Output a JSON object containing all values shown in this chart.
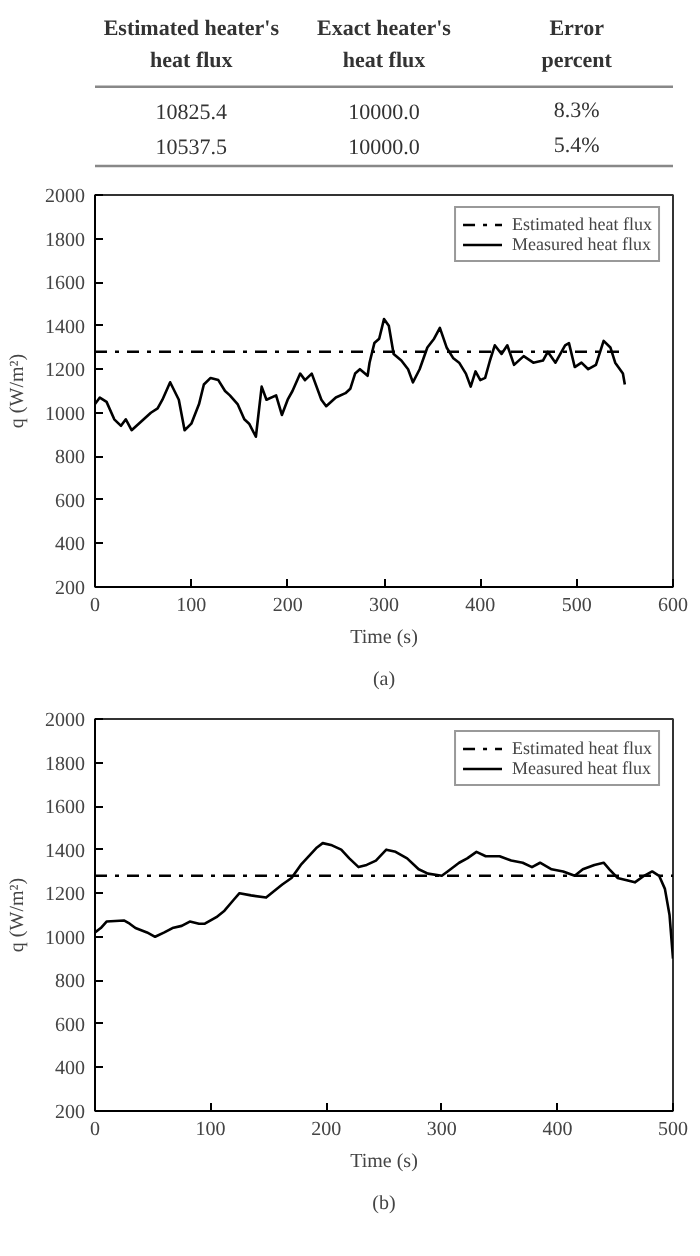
{
  "chart_data": [
    {
      "type": "other",
      "annotations": [
        "Estimated heater's\nheat flux",
        "Exact heater's\nheat flux",
        "Error\npercent",
        "10825.4",
        "10000.0",
        "8.3%",
        "10537.5",
        "10000.0",
        "5.4%"
      ]
    },
    {
      "type": "line",
      "xlabel": "Time (s)",
      "ylabel": "q (W/m²)",
      "annotations": [
        "(a)"
      ],
      "xlim": [
        0,
        600
      ],
      "ylim": [
        200,
        2000
      ],
      "xticks": [
        0,
        100,
        200,
        300,
        400,
        500,
        600
      ],
      "yticks": [
        200,
        400,
        600,
        800,
        1000,
        1200,
        1400,
        1600,
        1800,
        2000
      ],
      "grid": false,
      "legend": "top right",
      "series": [
        {
          "name": "Estimated heat flux",
          "color": "#000000",
          "line_style": "dashdot",
          "x": [
            0,
            545
          ],
          "values": [
            1280,
            1280
          ]
        },
        {
          "name": "Measured heat flux",
          "color": "#000000",
          "line_style": "solid",
          "x": [
            0,
            5,
            12,
            20,
            27,
            32,
            38,
            48,
            58,
            65,
            70,
            78,
            87,
            93,
            100,
            108,
            113,
            120,
            128,
            135,
            140,
            148,
            155,
            160,
            167,
            173,
            178,
            188,
            194,
            200,
            205,
            213,
            218,
            225,
            235,
            240,
            250,
            260,
            265,
            270,
            275,
            283,
            285,
            290,
            295,
            300,
            305,
            310,
            318,
            325,
            330,
            337,
            345,
            352,
            358,
            365,
            372,
            378,
            385,
            390,
            395,
            400,
            405,
            410,
            415,
            422,
            428,
            435,
            445,
            455,
            465,
            470,
            478,
            488,
            492,
            498,
            505,
            512,
            520,
            528,
            535,
            540,
            548,
            550
          ],
          "values": [
            1040,
            1070,
            1050,
            970,
            940,
            970,
            920,
            960,
            1000,
            1020,
            1060,
            1140,
            1060,
            920,
            950,
            1040,
            1130,
            1160,
            1150,
            1100,
            1080,
            1040,
            970,
            950,
            890,
            1120,
            1060,
            1080,
            990,
            1060,
            1100,
            1180,
            1150,
            1180,
            1060,
            1030,
            1070,
            1090,
            1110,
            1180,
            1200,
            1170,
            1230,
            1320,
            1340,
            1430,
            1400,
            1270,
            1240,
            1200,
            1140,
            1200,
            1300,
            1340,
            1390,
            1300,
            1250,
            1230,
            1180,
            1120,
            1190,
            1150,
            1160,
            1240,
            1310,
            1270,
            1310,
            1220,
            1260,
            1230,
            1240,
            1280,
            1230,
            1310,
            1320,
            1210,
            1230,
            1200,
            1220,
            1330,
            1300,
            1230,
            1180,
            1130
          ]
        }
      ]
    },
    {
      "type": "line",
      "xlabel": "Time (s)",
      "ylabel": "q (W/m²)",
      "annotations": [
        "(b)"
      ],
      "xlim": [
        0,
        500
      ],
      "ylim": [
        200,
        2000
      ],
      "xticks": [
        0,
        100,
        200,
        300,
        400,
        500
      ],
      "yticks": [
        200,
        400,
        600,
        800,
        1000,
        1200,
        1400,
        1600,
        1800,
        2000
      ],
      "grid": false,
      "legend": "top right",
      "series": [
        {
          "name": "Estimated heat flux",
          "color": "#000000",
          "line_style": "dashdot",
          "x": [
            0,
            500
          ],
          "values": [
            1280,
            1280
          ]
        },
        {
          "name": "Measured heat flux",
          "color": "#000000",
          "line_style": "solid",
          "x": [
            0,
            5,
            10,
            25,
            30,
            35,
            45,
            52,
            60,
            67,
            75,
            82,
            90,
            95,
            105,
            112,
            120,
            125,
            135,
            148,
            155,
            162,
            170,
            178,
            185,
            192,
            197,
            205,
            213,
            220,
            228,
            235,
            243,
            252,
            260,
            270,
            280,
            288,
            300,
            305,
            315,
            322,
            330,
            338,
            350,
            360,
            370,
            378,
            385,
            395,
            405,
            415,
            422,
            432,
            440,
            445,
            452,
            460,
            467,
            475,
            482,
            488,
            493,
            497,
            500
          ],
          "values": [
            1020,
            1040,
            1070,
            1075,
            1060,
            1040,
            1020,
            1000,
            1020,
            1040,
            1050,
            1070,
            1060,
            1060,
            1090,
            1120,
            1170,
            1200,
            1190,
            1180,
            1210,
            1240,
            1270,
            1330,
            1370,
            1410,
            1430,
            1420,
            1400,
            1360,
            1320,
            1330,
            1350,
            1400,
            1390,
            1360,
            1310,
            1290,
            1280,
            1300,
            1340,
            1360,
            1390,
            1370,
            1370,
            1350,
            1340,
            1320,
            1340,
            1310,
            1300,
            1280,
            1310,
            1330,
            1340,
            1310,
            1270,
            1260,
            1250,
            1280,
            1300,
            1280,
            1220,
            1100,
            900
          ]
        }
      ]
    }
  ]
}
